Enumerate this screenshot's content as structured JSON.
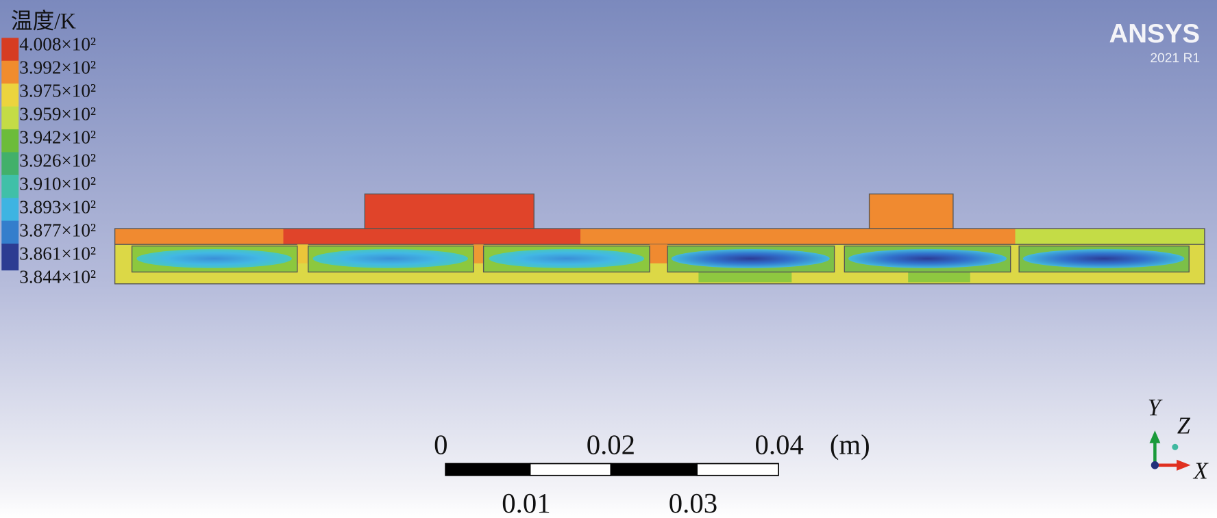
{
  "legend": {
    "title": "温度/K",
    "labels": [
      "4.008×10²",
      "3.992×10²",
      "3.975×10²",
      "3.959×10²",
      "3.942×10²",
      "3.926×10²",
      "3.910×10²",
      "3.893×10²",
      "3.877×10²",
      "3.861×10²",
      "3.844×10²"
    ]
  },
  "logo": {
    "name": "ANSYS",
    "version": "2021 R1"
  },
  "scale_bar": {
    "top_labels": [
      "0",
      "0.02",
      "0.04"
    ],
    "unit": "(m)",
    "bottom_labels": [
      "0.01",
      "0.03"
    ]
  },
  "triad": {
    "y": "Y",
    "z": "Z",
    "x": "X"
  }
}
